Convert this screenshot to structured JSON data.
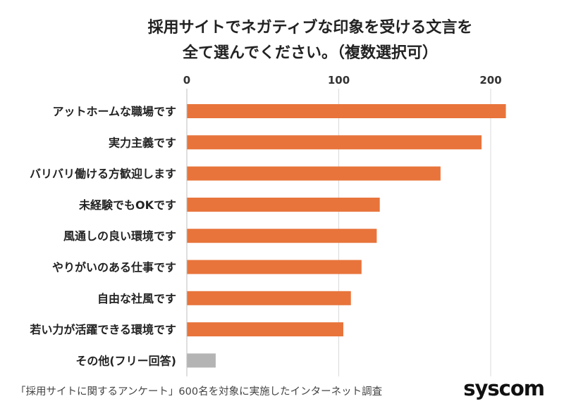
{
  "chart_data": {
    "type": "bar",
    "orientation": "horizontal",
    "title_lines": [
      "採用サイトでネガティブな印象を受ける文言を",
      "全て選んでください。（複数選択可）"
    ],
    "categories": [
      "アットホームな職場です",
      "実力主義です",
      "バリバリ働ける方歓迎します",
      "未経験でもOKです",
      "風通しの良い環境です",
      "やりがいのある仕事です",
      "自由な社風です",
      "若い力が活躍できる環境です",
      "その他(フリー回答)"
    ],
    "values": [
      210,
      194,
      167,
      127,
      125,
      115,
      108,
      103,
      19
    ],
    "bar_colors": [
      "#e8743b",
      "#e8743b",
      "#e8743b",
      "#e8743b",
      "#e8743b",
      "#e8743b",
      "#e8743b",
      "#e8743b",
      "#b4b4b4"
    ],
    "xlim": [
      0,
      230
    ],
    "xticks": [
      0,
      100,
      200
    ],
    "xtick_labels": [
      "0",
      "100",
      "200"
    ],
    "grid": true,
    "xaxis_position": "top"
  },
  "footnote": "「採用サイトに関するアンケート」600名を対象に実施したインターネット調査",
  "brand": "syscom"
}
